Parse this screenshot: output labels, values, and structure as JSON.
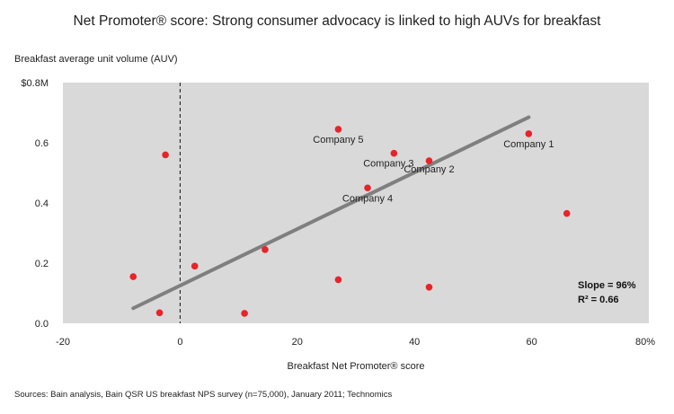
{
  "chart_data": {
    "type": "scatter",
    "title": "Net Promoter® score: Strong consumer advocacy is linked to high AUVs for breakfast",
    "ylabel": "Breakfast average unit volume (AUV)",
    "xlabel": "Breakfast Net Promoter® score",
    "xlim": [
      -20,
      80
    ],
    "ylim": [
      0,
      0.8
    ],
    "x_ticks": [
      -20,
      0,
      20,
      40,
      60,
      80
    ],
    "x_tick_labels": [
      "-20",
      "0",
      "20",
      "40",
      "60",
      "80%"
    ],
    "y_ticks": [
      0,
      0.2,
      0.4,
      0.6,
      0.8
    ],
    "y_tick_labels": [
      "0.0",
      "0.2",
      "0.4",
      "0.6",
      "$0.8M"
    ],
    "reference_line_x": 0,
    "grid": false,
    "points": [
      {
        "x": 59.5,
        "y": 0.63,
        "label": "Company 1"
      },
      {
        "x": 42.5,
        "y": 0.54,
        "label": "Company 2"
      },
      {
        "x": 36.5,
        "y": 0.565,
        "label": "Company 3"
      },
      {
        "x": 32,
        "y": 0.45,
        "label": "Company 4"
      },
      {
        "x": 27,
        "y": 0.645,
        "label": "Company 5"
      },
      {
        "x": -2.5,
        "y": 0.56,
        "label": ""
      },
      {
        "x": -8,
        "y": 0.155,
        "label": ""
      },
      {
        "x": -3.5,
        "y": 0.035,
        "label": ""
      },
      {
        "x": 2.5,
        "y": 0.19,
        "label": ""
      },
      {
        "x": 11,
        "y": 0.033,
        "label": ""
      },
      {
        "x": 14.5,
        "y": 0.245,
        "label": ""
      },
      {
        "x": 27,
        "y": 0.145,
        "label": ""
      },
      {
        "x": 42.5,
        "y": 0.12,
        "label": ""
      },
      {
        "x": 66,
        "y": 0.365,
        "label": ""
      }
    ],
    "trendline": {
      "x": [
        -8,
        59.5
      ],
      "y": [
        0.05,
        0.685
      ]
    },
    "annotations": {
      "slope": "Slope = 96%",
      "r2": "R² = 0.66"
    },
    "colors": {
      "plot_bg": "#d9d9d9",
      "point": "#e8232a",
      "trend": "#7f7f7f",
      "refline": "#111111"
    }
  },
  "source": "Sources: Bain analysis, Bain QSR US breakfast NPS survey (n=75,000), January 2011; Technomics"
}
